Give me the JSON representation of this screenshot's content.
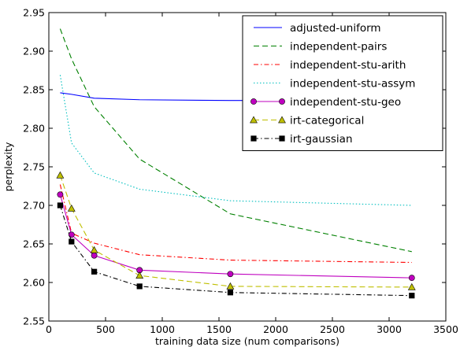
{
  "chart_data": {
    "type": "line",
    "title": "",
    "xlabel": "training data size (num comparisons)",
    "ylabel": "perplexity",
    "xlim": [
      0,
      3500
    ],
    "ylim": [
      2.55,
      2.95
    ],
    "xticks": [
      0,
      500,
      1000,
      1500,
      2000,
      2500,
      3000,
      3500
    ],
    "yticks": [
      2.55,
      2.6,
      2.65,
      2.7,
      2.75,
      2.8,
      2.85,
      2.9,
      2.95
    ],
    "xtick_labels": [
      "0",
      "500",
      "1000",
      "1500",
      "2000",
      "2500",
      "3000",
      "3500"
    ],
    "ytick_labels": [
      "2.55",
      "2.60",
      "2.65",
      "2.70",
      "2.75",
      "2.80",
      "2.85",
      "2.90",
      "2.95"
    ],
    "grid": false,
    "legend_position": "top-right",
    "series": [
      {
        "name": "adjusted-uniform",
        "color": "#0000ff",
        "dash": "solid",
        "marker": "none",
        "x": [
          100,
          200,
          400,
          800,
          1600,
          3200
        ],
        "y": [
          2.846,
          2.844,
          2.839,
          2.837,
          2.836,
          2.836
        ]
      },
      {
        "name": "independent-pairs",
        "color": "#008000",
        "dash": "dashed",
        "marker": "none",
        "x": [
          100,
          200,
          400,
          800,
          1600,
          3200
        ],
        "y": [
          2.929,
          2.89,
          2.828,
          2.76,
          2.689,
          2.64
        ]
      },
      {
        "name": "independent-stu-arith",
        "color": "#ff0000",
        "dash": "dashdot",
        "marker": "none",
        "x": [
          100,
          200,
          400,
          800,
          1600,
          3200
        ],
        "y": [
          2.727,
          2.664,
          2.651,
          2.636,
          2.629,
          2.626
        ]
      },
      {
        "name": "independent-stu-assym",
        "color": "#00bfbf",
        "dash": "dotted",
        "marker": "none",
        "x": [
          100,
          200,
          400,
          800,
          1600,
          3200
        ],
        "y": [
          2.869,
          2.781,
          2.742,
          2.721,
          2.706,
          2.7
        ]
      },
      {
        "name": "independent-stu-geo",
        "color": "#bf00bf",
        "dash": "solid",
        "marker": "circle",
        "x": [
          100,
          200,
          400,
          800,
          1600,
          3200
        ],
        "y": [
          2.714,
          2.662,
          2.635,
          2.616,
          2.611,
          2.606
        ]
      },
      {
        "name": "irt-categorical",
        "color": "#bfbf00",
        "dash": "dashed",
        "marker": "triangle",
        "x": [
          100,
          200,
          400,
          800,
          1600,
          3200
        ],
        "y": [
          2.739,
          2.696,
          2.642,
          2.609,
          2.595,
          2.594
        ]
      },
      {
        "name": "irt-gaussian",
        "color": "#000000",
        "dash": "dashdot",
        "marker": "square",
        "x": [
          100,
          200,
          400,
          800,
          1600,
          3200
        ],
        "y": [
          2.7,
          2.653,
          2.614,
          2.595,
          2.587,
          2.583
        ]
      }
    ]
  }
}
